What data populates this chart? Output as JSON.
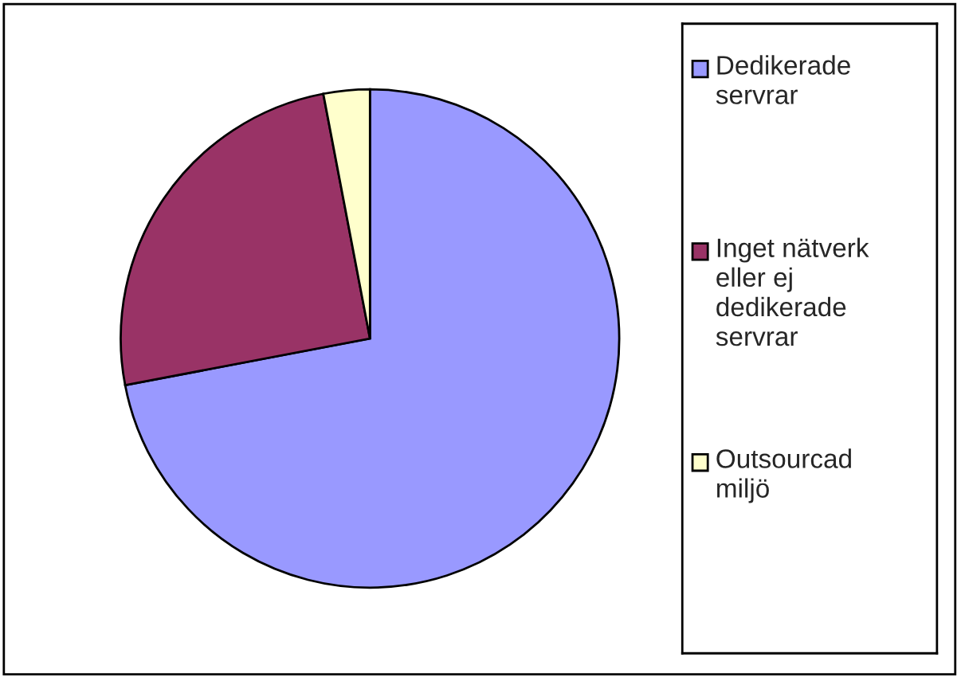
{
  "chart_data": {
    "type": "pie",
    "categories": [
      "Dedikerade servrar",
      "Inget nätverk eller ej dedikerade servrar",
      "Outsourcad miljö"
    ],
    "values": [
      72,
      25,
      3
    ],
    "colors": [
      "#9999ff",
      "#993366",
      "#ffffcc"
    ],
    "legend": "right"
  }
}
